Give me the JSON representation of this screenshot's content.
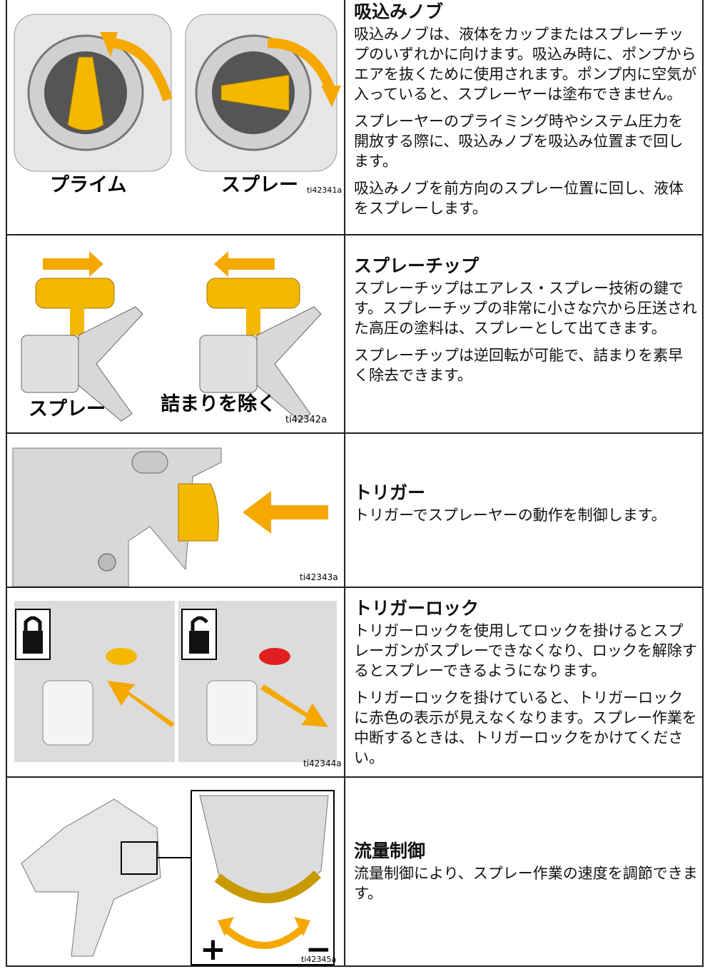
{
  "rows": [
    {
      "image": {
        "labels": [
          "プライム",
          "スプレー"
        ],
        "code": "ti42341a"
      },
      "title": "吸込みノブ",
      "paragraphs": [
        "吸込みノブは、液体をカップまたはスプレーチップのいずれかに向けます。吸込み時に、ポンプからエアを抜くために使用されます。ポンプ内に空気が入っていると、スプレーヤーは塗布できません。",
        "スプレーヤーのプライミング時やシステム圧力を開放する際に、吸込みノブを吸込み位置まで回します。",
        "吸込みノブを前方向のスプレー位置に回し、液体をスプレーします。"
      ]
    },
    {
      "image": {
        "labels": [
          "スプレー",
          "詰まりを除く"
        ],
        "code": "ti42342a"
      },
      "title": "スプレーチップ",
      "paragraphs": [
        "スプレーチップはエアレス・スプレー技術の鍵です。スプレーチップの非常に小さな穴から圧送された高圧の塗料は、スプレーとして出てきます。",
        "スプレーチップは逆回転が可能で、詰まりを素早く除去できます。"
      ]
    },
    {
      "image": {
        "code": "ti42343a"
      },
      "title": "トリガー",
      "paragraphs": [
        "トリガーでスプレーヤーの動作を制御します。"
      ]
    },
    {
      "image": {
        "code": "ti42344a"
      },
      "title": "トリガーロック",
      "paragraphs": [
        "トリガーロックを使用してロックを掛けるとスプレーガンがスプレーできなくなり、ロックを解除するとスプレーできるようになります。",
        "トリガーロックを掛けていると、トリガーロックに赤色の表示が見えなくなります。スプレー作業を中断するときは、トリガーロックをかけてください。"
      ]
    },
    {
      "image": {
        "labels": [
          "+",
          "−"
        ],
        "code": "ti42345a"
      },
      "title": "流量制御",
      "paragraphs": [
        "流量制御により、スプレー作業の速度を調節できます。"
      ]
    }
  ]
}
